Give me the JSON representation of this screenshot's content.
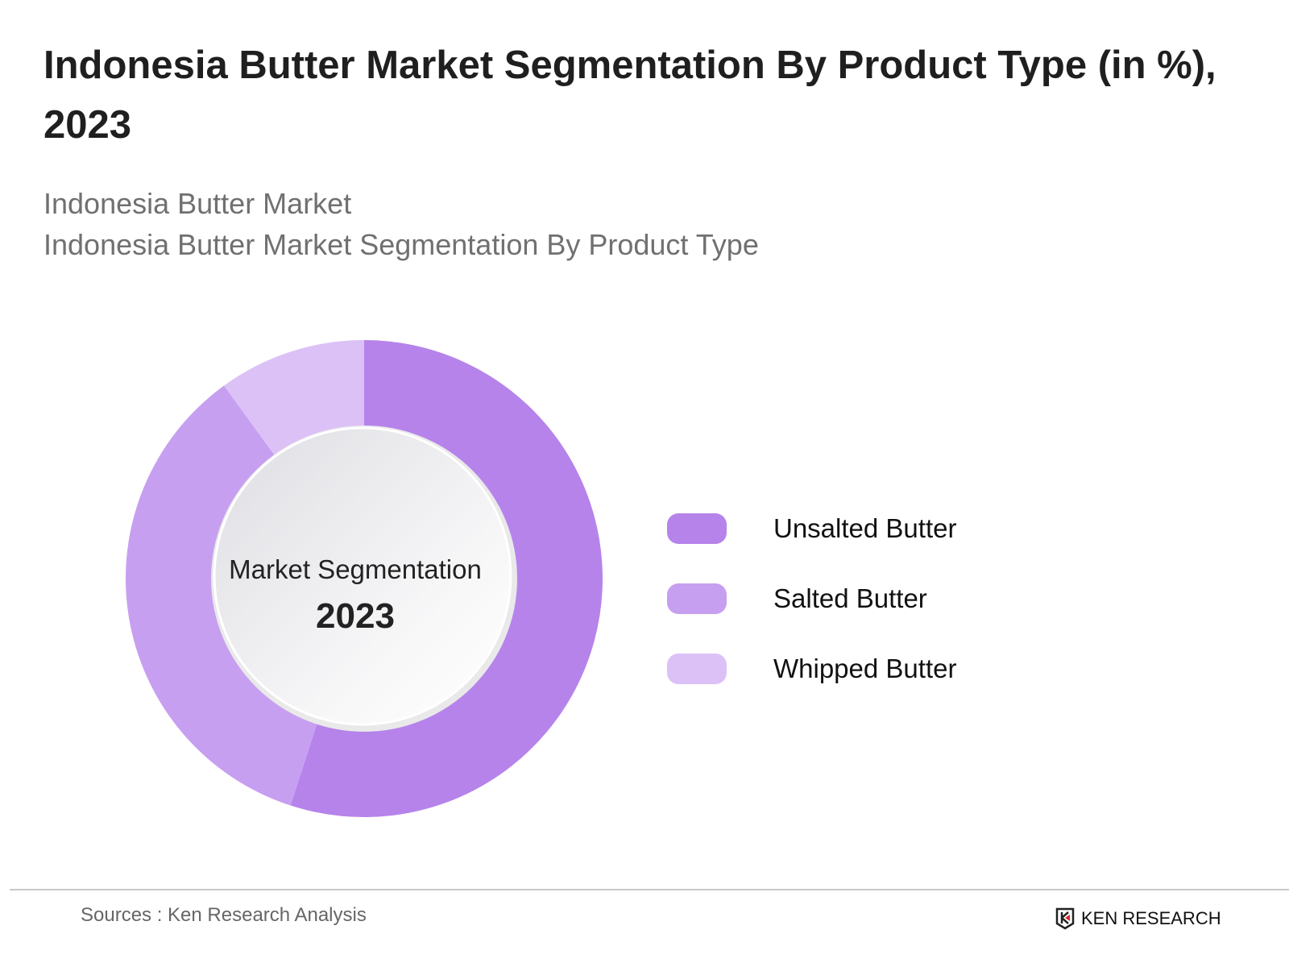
{
  "header": {
    "title": "Indonesia Butter Market Segmentation By Product Type  (in %), 2023",
    "subtitle_1": "Indonesia Butter Market",
    "subtitle_2": "Indonesia Butter Market Segmentation By Product Type"
  },
  "chart_data": {
    "type": "pie",
    "variant": "donut",
    "title": "Indonesia Butter Market Segmentation By Product Type  (in %), 2023",
    "center_label": "Market Segmentation",
    "center_year": "2023",
    "categories": [
      "Unsalted Butter",
      "Salted Butter",
      "Whipped Butter"
    ],
    "values": [
      55,
      35,
      10
    ],
    "colors": [
      "#b683eb",
      "#c79ff0",
      "#dcc1f7"
    ],
    "legend_position": "right"
  },
  "footer": {
    "source": "Sources : Ken Research Analysis",
    "logo_text": "KEN RESEARCH"
  }
}
